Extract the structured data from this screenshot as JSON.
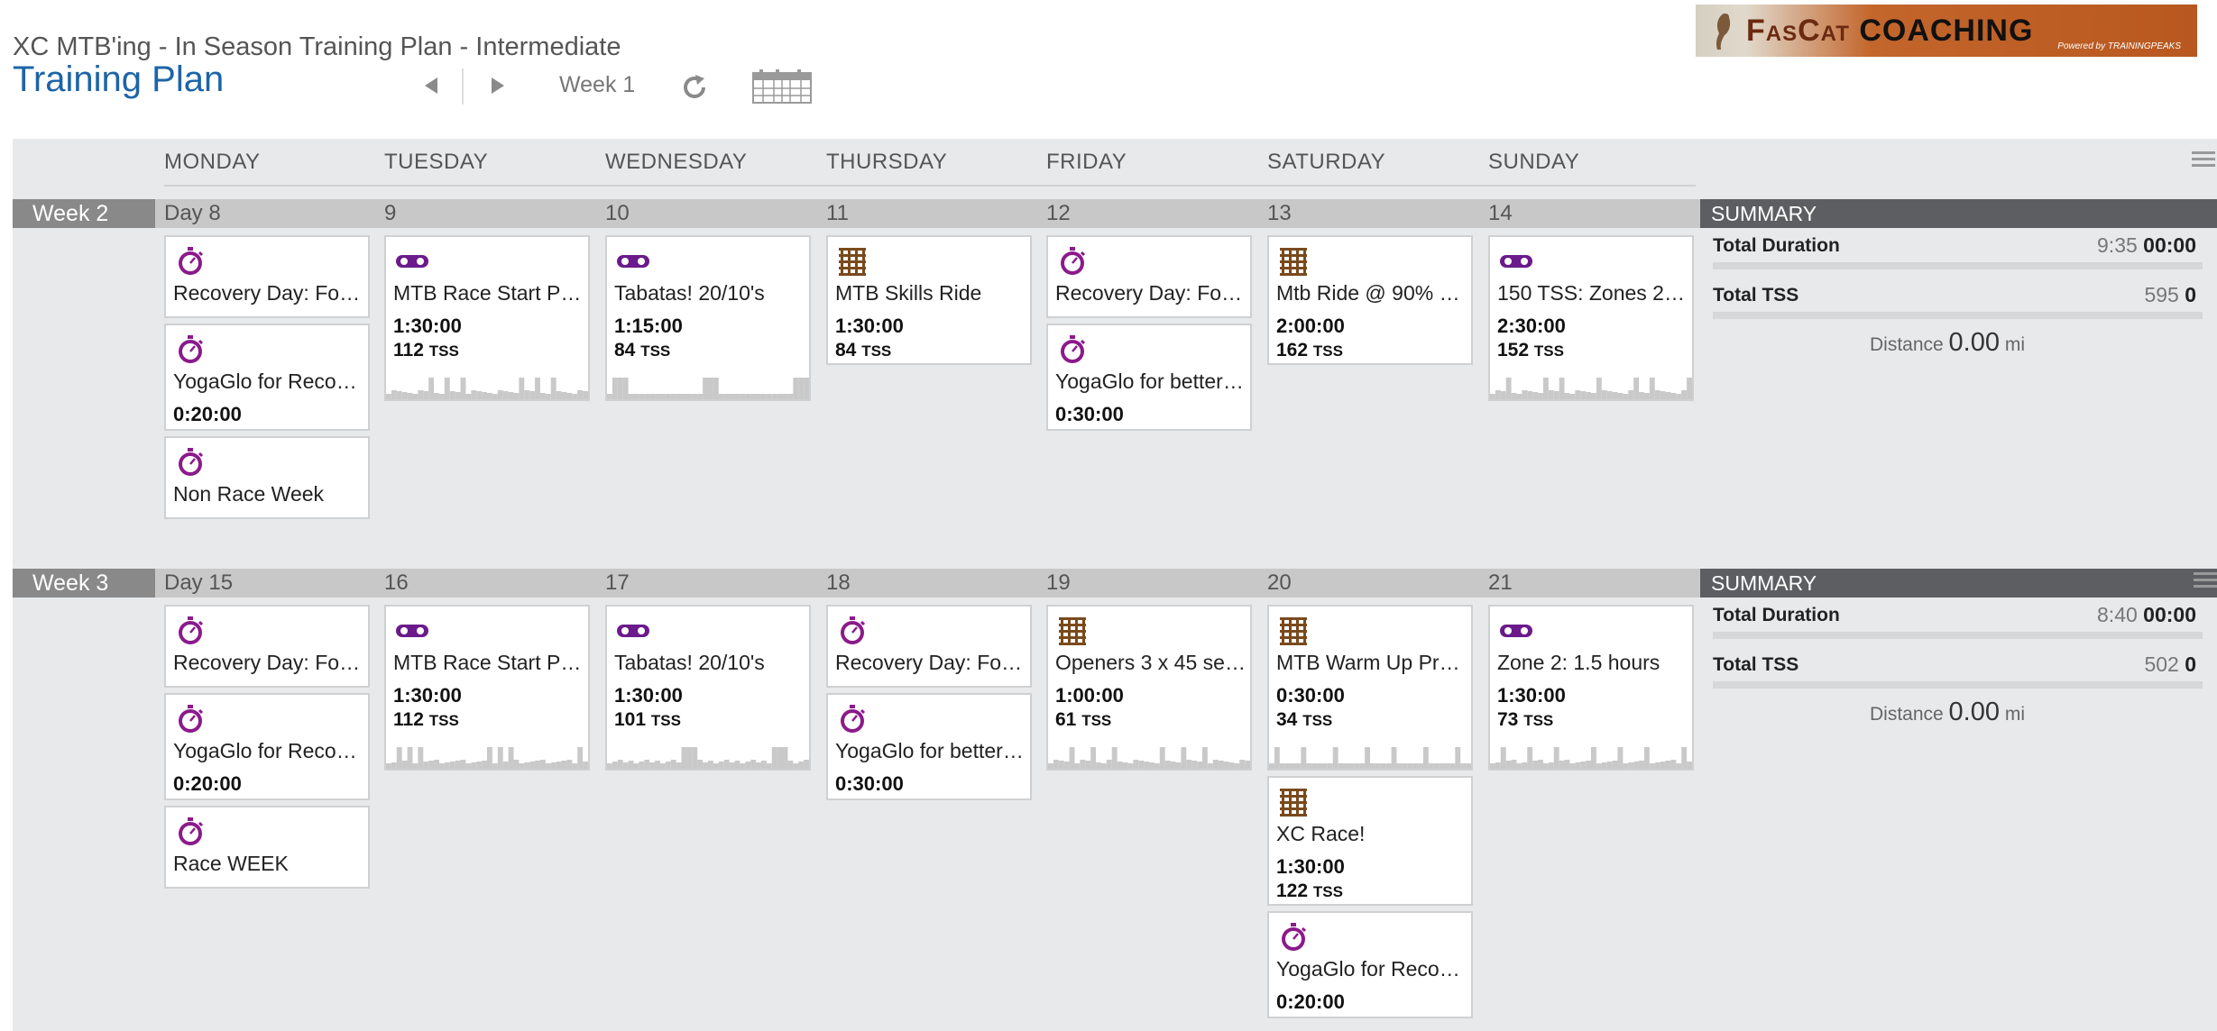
{
  "header": {
    "plan_name": "XC MTB'ing - In Season Training Plan - Intermediate",
    "title": "Training Plan",
    "week_label": "Week 1",
    "logo": {
      "brand_prefix": "FasCat",
      "brand_suffix": "COACHING",
      "powered": "Powered by TRAININGPEAKS"
    }
  },
  "days": [
    "MONDAY",
    "TUESDAY",
    "WEDNESDAY",
    "THURSDAY",
    "FRIDAY",
    "SATURDAY",
    "SUNDAY"
  ],
  "icons": {
    "stopwatch": "stopwatch-icon",
    "bike": "bike-icon",
    "strength": "strength-icon",
    "prev": "chevron-left-icon",
    "next": "chevron-right-icon",
    "refresh": "refresh-icon",
    "calendar": "calendar-icon",
    "menu": "menu-icon"
  },
  "colors": {
    "title_blue": "#1d64a6",
    "workout_purple": "#8b1a8b",
    "strength_brown": "#7a4a1c",
    "summary_header": "#5c5e61"
  },
  "weeks": [
    {
      "label": "Week 2",
      "day_numbers": [
        "Day 8",
        "9",
        "10",
        "11",
        "12",
        "13",
        "14"
      ],
      "summary": {
        "header": "SUMMARY",
        "duration_label": "Total Duration",
        "duration_planned": "9:35",
        "duration_done": "00:00",
        "tss_label": "Total TSS",
        "tss_planned": "595",
        "tss_done": "0",
        "distance_label": "Distance",
        "distance_value": "0.00",
        "distance_unit": "mi"
      },
      "workouts": [
        [
          {
            "title": "Recovery Day: Fou…",
            "icon": "stopwatch"
          },
          {
            "title": "YogaGlo for Recov…",
            "icon": "stopwatch",
            "duration": "0:20:00"
          },
          {
            "title": "Non Race Week",
            "icon": "stopwatch"
          }
        ],
        [
          {
            "title": "MTB Race Start Pr…",
            "icon": "bike",
            "duration": "1:30:00",
            "tss": "112"
          }
        ],
        [
          {
            "title": "Tabatas! 20/10's",
            "icon": "bike",
            "duration": "1:15:00",
            "tss": "84"
          }
        ],
        [
          {
            "title": "MTB Skills Ride",
            "icon": "strength",
            "duration": "1:30:00",
            "tss": "84"
          }
        ],
        [
          {
            "title": "Recovery Day: Fou…",
            "icon": "stopwatch"
          },
          {
            "title": "YogaGlo for better …",
            "icon": "stopwatch",
            "duration": "0:30:00"
          }
        ],
        [
          {
            "title": "Mtb Ride @ 90% R…",
            "icon": "strength",
            "duration": "2:00:00",
            "tss": "162"
          }
        ],
        [
          {
            "title": "150 TSS: Zones 2 …",
            "icon": "bike",
            "duration": "2:30:00",
            "tss": "152"
          }
        ]
      ]
    },
    {
      "label": "Week 3",
      "day_numbers": [
        "Day 15",
        "16",
        "17",
        "18",
        "19",
        "20",
        "21"
      ],
      "summary": {
        "header": "SUMMARY",
        "duration_label": "Total Duration",
        "duration_planned": "8:40",
        "duration_done": "00:00",
        "tss_label": "Total TSS",
        "tss_planned": "502",
        "tss_done": "0",
        "distance_label": "Distance",
        "distance_value": "0.00",
        "distance_unit": "mi"
      },
      "workouts": [
        [
          {
            "title": "Recovery Day: Fou…",
            "icon": "stopwatch"
          },
          {
            "title": "YogaGlo for Recov…",
            "icon": "stopwatch",
            "duration": "0:20:00"
          },
          {
            "title": "Race WEEK",
            "icon": "stopwatch"
          }
        ],
        [
          {
            "title": "MTB Race Start Pr…",
            "icon": "bike",
            "duration": "1:30:00",
            "tss": "112"
          }
        ],
        [
          {
            "title": "Tabatas! 20/10's",
            "icon": "bike",
            "duration": "1:30:00",
            "tss": "101"
          }
        ],
        [
          {
            "title": "Recovery Day: Fou…",
            "icon": "stopwatch"
          },
          {
            "title": "YogaGlo for better …",
            "icon": "stopwatch",
            "duration": "0:30:00"
          }
        ],
        [
          {
            "title": "Openers 3 x 45 se…",
            "icon": "strength",
            "duration": "1:00:00",
            "tss": "61"
          }
        ],
        [
          {
            "title": "MTB Warm Up Pro…",
            "icon": "strength",
            "duration": "0:30:00",
            "tss": "34"
          },
          {
            "title": "XC Race!",
            "icon": "strength",
            "duration": "1:30:00",
            "tss": "122"
          },
          {
            "title": "YogaGlo for Recov…",
            "icon": "stopwatch",
            "duration": "0:20:00"
          }
        ],
        [
          {
            "title": "Zone 2: 1.5 hours",
            "icon": "bike",
            "duration": "1:30:00",
            "tss": "73"
          }
        ]
      ]
    }
  ],
  "tss_unit": "TSS"
}
